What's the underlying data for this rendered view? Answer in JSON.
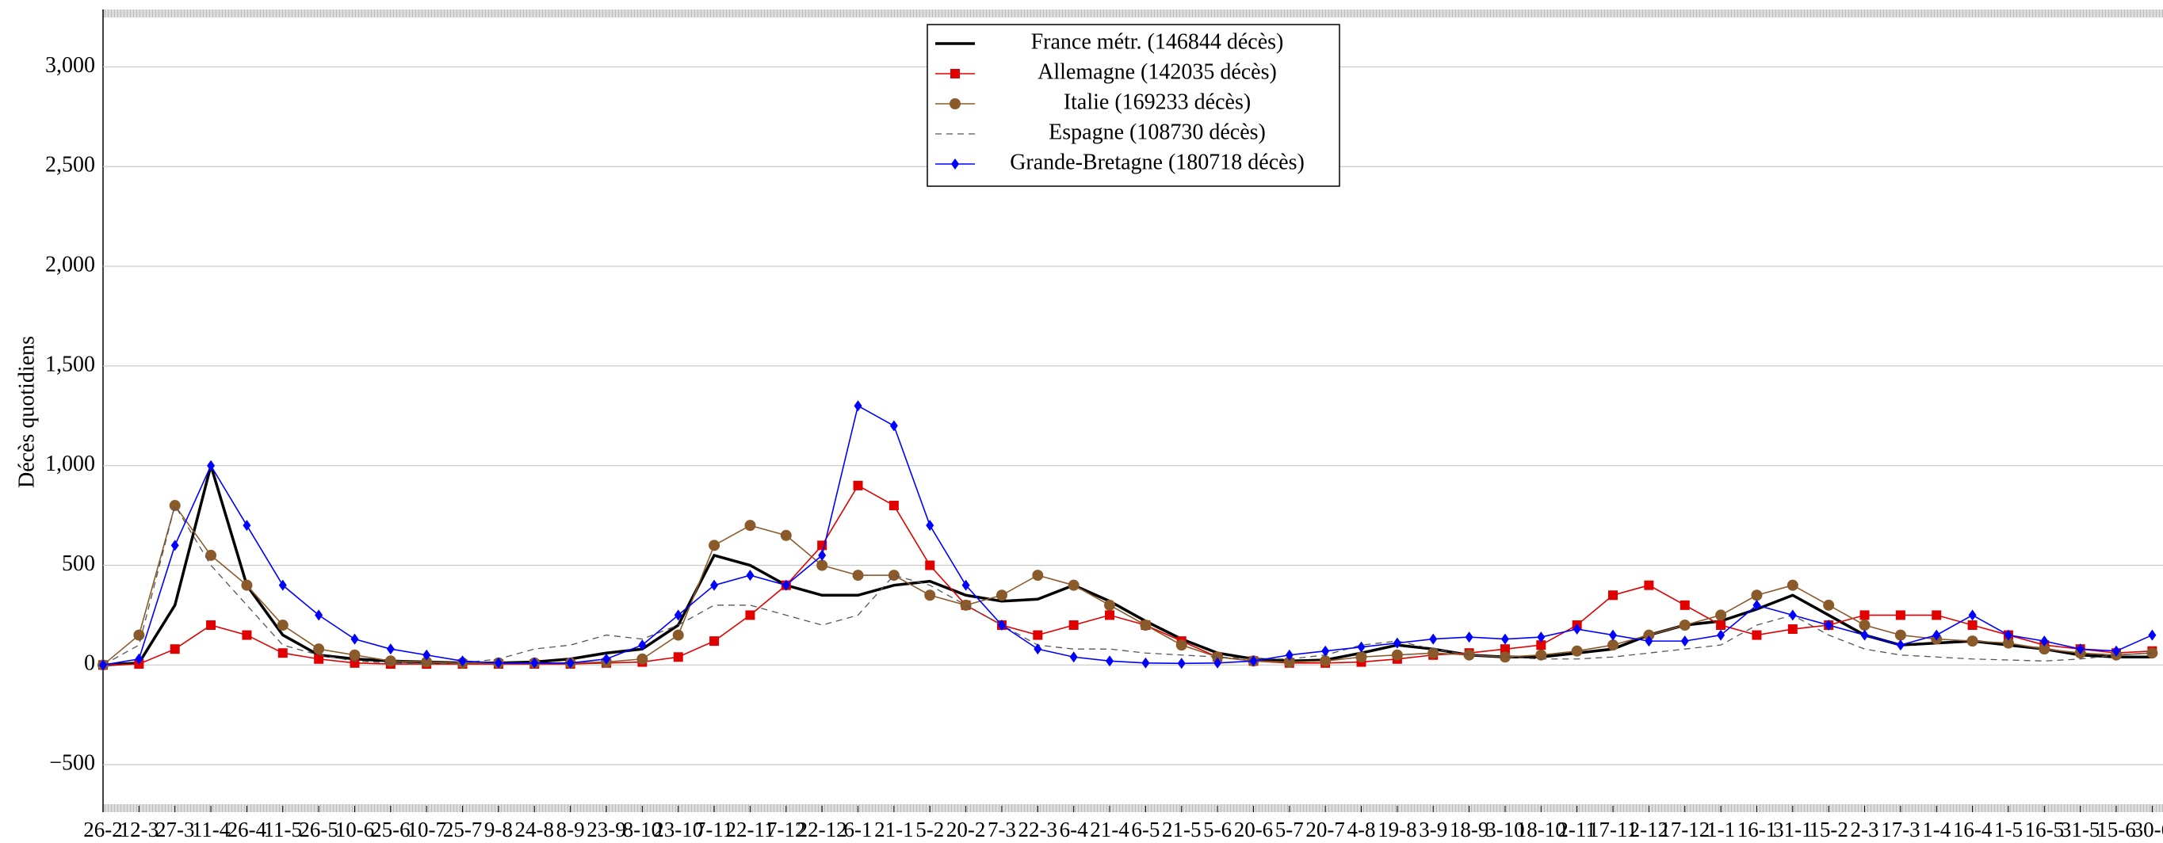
{
  "chart_data": {
    "type": "line",
    "y_label": "Décès quotidiens",
    "categories": [
      "26-2",
      "12-3",
      "27-3",
      "11-4",
      "26-4",
      "11-5",
      "26-5",
      "10-6",
      "25-6",
      "10-7",
      "25-7",
      "9-8",
      "24-8",
      "8-9",
      "23-9",
      "8-10",
      "23-10",
      "7-11",
      "22-11",
      "7-12",
      "22-12",
      "6-1",
      "21-1",
      "5-2",
      "20-2",
      "7-3",
      "22-3",
      "6-4",
      "21-4",
      "6-5",
      "21-5",
      "5-6",
      "20-6",
      "5-7",
      "20-7",
      "4-8",
      "19-8",
      "3-9",
      "18-9",
      "3-10",
      "18-10",
      "2-11",
      "17-11",
      "2-12",
      "17-12",
      "1-1",
      "16-1",
      "31-1",
      "15-2",
      "2-3",
      "17-3",
      "1-4",
      "16-4",
      "1-5",
      "16-5",
      "31-5",
      "15-6",
      "30-6"
    ],
    "series": [
      {
        "name": "France métr. (146844 décès)",
        "color": "#000000",
        "marker": "none",
        "dash": false,
        "values": [
          0,
          10,
          300,
          1000,
          400,
          150,
          50,
          30,
          20,
          15,
          10,
          10,
          15,
          30,
          60,
          80,
          200,
          550,
          500,
          400,
          350,
          350,
          400,
          420,
          350,
          320,
          330,
          400,
          320,
          220,
          130,
          60,
          30,
          20,
          25,
          60,
          100,
          80,
          50,
          40,
          40,
          60,
          80,
          150,
          200,
          220,
          280,
          350,
          250,
          150,
          100,
          110,
          120,
          100,
          80,
          50,
          40,
          40
        ]
      },
      {
        "name": "Allemagne (142035 décès)",
        "color": "#e00000",
        "marker": "square",
        "dash": false,
        "values": [
          0,
          5,
          80,
          200,
          150,
          60,
          30,
          10,
          5,
          5,
          5,
          5,
          5,
          5,
          10,
          15,
          40,
          120,
          250,
          400,
          600,
          900,
          800,
          500,
          300,
          200,
          150,
          200,
          250,
          200,
          120,
          40,
          20,
          10,
          10,
          15,
          30,
          50,
          60,
          80,
          100,
          200,
          350,
          400,
          300,
          200,
          150,
          180,
          200,
          250,
          250,
          250,
          200,
          150,
          100,
          80,
          60,
          70
        ]
      },
      {
        "name": "Italie (169233 décès)",
        "color": "#8b5a2b",
        "marker": "circle",
        "dash": false,
        "values": [
          0,
          150,
          800,
          550,
          400,
          200,
          80,
          50,
          20,
          15,
          10,
          10,
          10,
          10,
          15,
          30,
          150,
          600,
          700,
          650,
          500,
          450,
          450,
          350,
          300,
          350,
          450,
          400,
          300,
          200,
          100,
          40,
          20,
          15,
          20,
          40,
          50,
          60,
          50,
          40,
          50,
          70,
          100,
          150,
          200,
          250,
          350,
          400,
          300,
          200,
          150,
          130,
          120,
          110,
          80,
          60,
          50,
          60
        ]
      },
      {
        "name": "Espagne (108730 décès)",
        "color": "#555555",
        "marker": "none",
        "dash": true,
        "values": [
          0,
          100,
          800,
          500,
          300,
          100,
          50,
          20,
          10,
          5,
          10,
          30,
          80,
          100,
          150,
          130,
          200,
          300,
          300,
          250,
          200,
          250,
          450,
          400,
          300,
          200,
          100,
          80,
          80,
          60,
          50,
          40,
          30,
          30,
          50,
          100,
          120,
          80,
          50,
          40,
          30,
          30,
          40,
          60,
          80,
          100,
          200,
          250,
          150,
          80,
          50,
          40,
          30,
          25,
          20,
          30,
          50,
          60
        ]
      },
      {
        "name": "Grande-Bretagne (180718 décès)",
        "color": "#0000ff",
        "marker": "diamond",
        "dash": false,
        "values": [
          0,
          30,
          600,
          1000,
          700,
          400,
          250,
          130,
          80,
          50,
          20,
          10,
          10,
          10,
          30,
          100,
          250,
          400,
          450,
          400,
          550,
          1300,
          1200,
          700,
          400,
          200,
          80,
          40,
          20,
          10,
          8,
          10,
          20,
          50,
          70,
          90,
          110,
          130,
          140,
          130,
          140,
          180,
          150,
          120,
          120,
          150,
          300,
          250,
          200,
          150,
          100,
          150,
          250,
          150,
          120,
          80,
          70,
          150
        ]
      }
    ],
    "ylim": [
      -730,
      3280
    ],
    "yticks": [
      {
        "value": -500,
        "label": "−500"
      },
      0,
      500,
      {
        "value": 1000,
        "label": "1,000"
      },
      {
        "value": 1500,
        "label": "1,500"
      },
      {
        "value": 2000,
        "label": "2,000"
      },
      {
        "value": 2500,
        "label": "2,500"
      },
      {
        "value": 3000,
        "label": "3,000"
      }
    ],
    "grid": true,
    "legend": "top"
  }
}
